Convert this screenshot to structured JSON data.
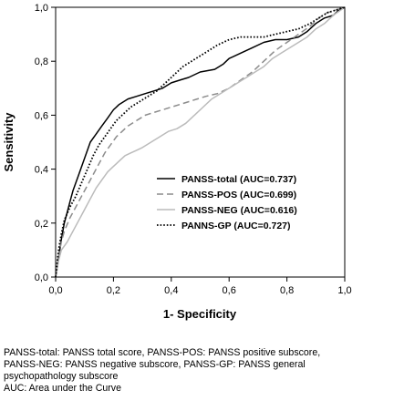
{
  "chart_data": {
    "type": "line",
    "xlabel": "1- Specificity",
    "ylabel": "Sensitivity",
    "xlim": [
      0,
      1
    ],
    "ylim": [
      0,
      1
    ],
    "xticks": [
      "0,0",
      "0,2",
      "0,4",
      "0,6",
      "0,8",
      "1,0"
    ],
    "yticks": [
      "0,0",
      "0,2",
      "0,4",
      "0,6",
      "0,8",
      "1,0"
    ],
    "grid": false,
    "legend_position": "lower-right",
    "series": [
      {
        "name": "PANSS-total (AUC=0.737)",
        "color": "#000000",
        "style": "solid",
        "x": [
          0,
          0.005,
          0.01,
          0.02,
          0.03,
          0.04,
          0.05,
          0.06,
          0.08,
          0.1,
          0.12,
          0.14,
          0.16,
          0.18,
          0.2,
          0.22,
          0.25,
          0.28,
          0.31,
          0.34,
          0.37,
          0.4,
          0.43,
          0.46,
          0.5,
          0.55,
          0.58,
          0.6,
          0.64,
          0.68,
          0.72,
          0.76,
          0.8,
          0.84,
          0.87,
          0.9,
          0.93,
          0.96,
          0.98,
          1.0
        ],
        "y": [
          0,
          0.03,
          0.07,
          0.14,
          0.2,
          0.24,
          0.28,
          0.32,
          0.38,
          0.44,
          0.5,
          0.53,
          0.56,
          0.59,
          0.62,
          0.64,
          0.66,
          0.67,
          0.68,
          0.69,
          0.7,
          0.72,
          0.73,
          0.74,
          0.76,
          0.77,
          0.79,
          0.81,
          0.83,
          0.85,
          0.87,
          0.88,
          0.88,
          0.89,
          0.91,
          0.94,
          0.96,
          0.97,
          0.99,
          1.0
        ]
      },
      {
        "name": "PANSS-POS (AUC=0.699)",
        "color": "#8c8c8c",
        "style": "dashed",
        "x": [
          0,
          0.01,
          0.02,
          0.03,
          0.05,
          0.07,
          0.09,
          0.11,
          0.13,
          0.15,
          0.17,
          0.19,
          0.21,
          0.23,
          0.25,
          0.28,
          0.31,
          0.34,
          0.37,
          0.4,
          0.43,
          0.46,
          0.49,
          0.52,
          0.56,
          0.6,
          0.64,
          0.68,
          0.72,
          0.76,
          0.8,
          0.84,
          0.88,
          0.91,
          0.94,
          0.97,
          1.0
        ],
        "y": [
          0,
          0.08,
          0.13,
          0.17,
          0.22,
          0.26,
          0.3,
          0.34,
          0.38,
          0.42,
          0.46,
          0.49,
          0.52,
          0.54,
          0.56,
          0.58,
          0.6,
          0.61,
          0.62,
          0.63,
          0.64,
          0.65,
          0.66,
          0.67,
          0.68,
          0.7,
          0.73,
          0.76,
          0.8,
          0.84,
          0.87,
          0.9,
          0.93,
          0.96,
          0.98,
          0.99,
          1.0
        ]
      },
      {
        "name": "PANSS-NEG (AUC=0.616)",
        "color": "#bbbbbb",
        "style": "solid",
        "x": [
          0,
          0.01,
          0.02,
          0.04,
          0.06,
          0.08,
          0.1,
          0.12,
          0.14,
          0.16,
          0.18,
          0.2,
          0.22,
          0.24,
          0.26,
          0.28,
          0.3,
          0.33,
          0.36,
          0.39,
          0.42,
          0.45,
          0.48,
          0.51,
          0.54,
          0.57,
          0.6,
          0.63,
          0.66,
          0.69,
          0.72,
          0.75,
          0.78,
          0.81,
          0.84,
          0.87,
          0.9,
          0.93,
          0.96,
          1.0
        ],
        "y": [
          0,
          0.06,
          0.1,
          0.13,
          0.17,
          0.21,
          0.25,
          0.29,
          0.33,
          0.36,
          0.39,
          0.41,
          0.43,
          0.45,
          0.46,
          0.47,
          0.48,
          0.5,
          0.52,
          0.54,
          0.55,
          0.57,
          0.6,
          0.63,
          0.66,
          0.68,
          0.7,
          0.72,
          0.74,
          0.76,
          0.78,
          0.81,
          0.83,
          0.85,
          0.87,
          0.89,
          0.92,
          0.94,
          0.97,
          1.0
        ]
      },
      {
        "name": "PANNS-GP (AUC=0.727)",
        "color": "#000000",
        "style": "dotted",
        "x": [
          0,
          0.005,
          0.01,
          0.02,
          0.03,
          0.05,
          0.07,
          0.09,
          0.11,
          0.13,
          0.15,
          0.17,
          0.19,
          0.21,
          0.23,
          0.26,
          0.29,
          0.32,
          0.35,
          0.38,
          0.41,
          0.44,
          0.47,
          0.5,
          0.53,
          0.56,
          0.6,
          0.64,
          0.68,
          0.72,
          0.76,
          0.8,
          0.84,
          0.88,
          0.91,
          0.94,
          0.97,
          1.0
        ],
        "y": [
          0,
          0.05,
          0.1,
          0.16,
          0.21,
          0.26,
          0.3,
          0.35,
          0.4,
          0.45,
          0.49,
          0.52,
          0.55,
          0.58,
          0.6,
          0.63,
          0.65,
          0.67,
          0.69,
          0.72,
          0.75,
          0.78,
          0.8,
          0.82,
          0.84,
          0.86,
          0.88,
          0.89,
          0.89,
          0.89,
          0.9,
          0.91,
          0.92,
          0.94,
          0.96,
          0.98,
          0.99,
          1.0
        ]
      }
    ]
  },
  "caption": {
    "line1": "PANSS-total: PANSS total score, PANSS-POS: PANSS positive subscore,",
    "line2": "PANSS-NEG: PANSS negative subscore, PANSS-GP: PANSS general",
    "line3": "psychopathology subscore",
    "line4": "AUC: Area under the Curve"
  }
}
